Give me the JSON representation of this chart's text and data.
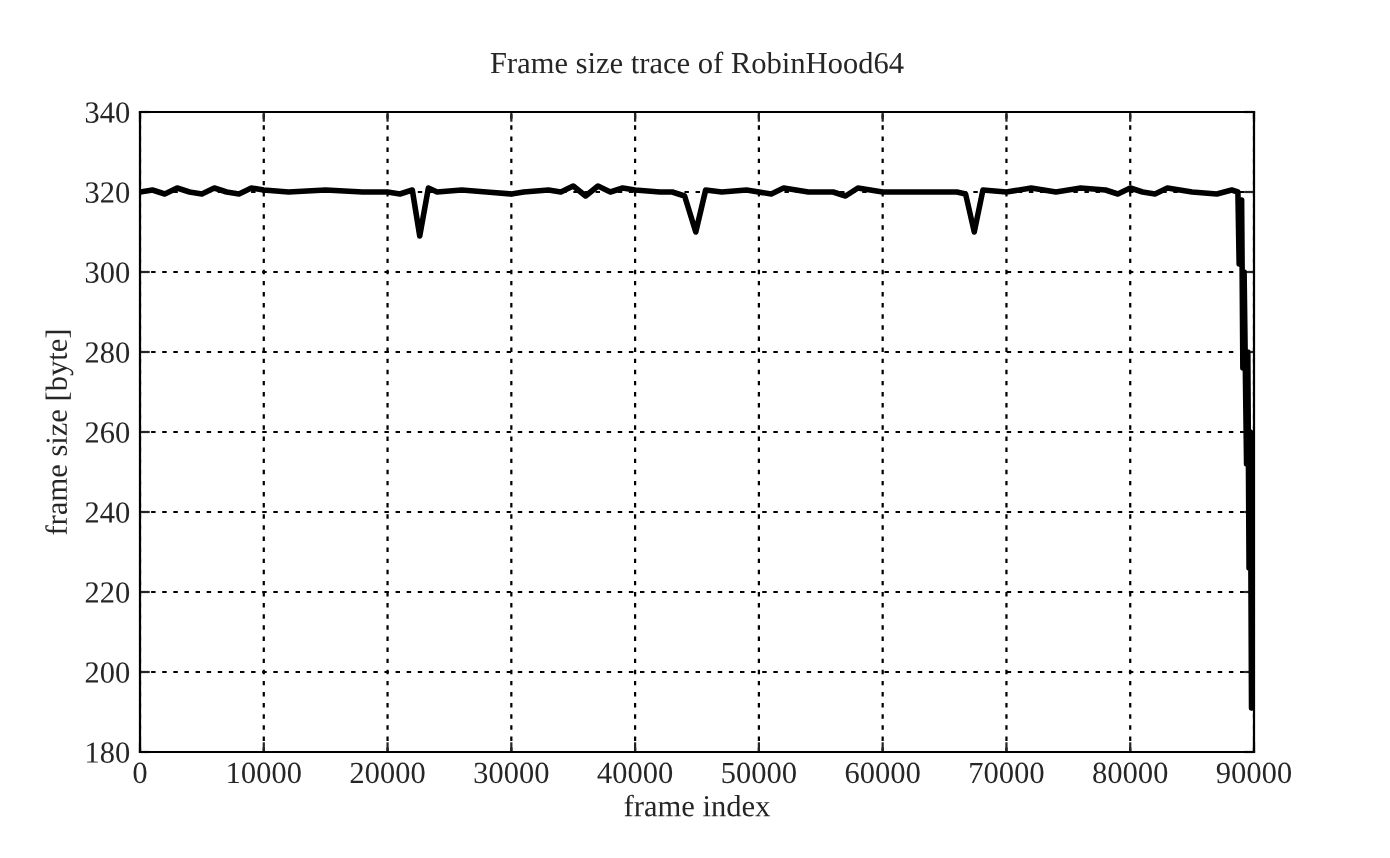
{
  "chart_data": {
    "type": "line",
    "title": "Frame size trace of RobinHood64",
    "xlabel": "frame index",
    "ylabel": "frame size [byte]",
    "xlim": [
      0,
      90000
    ],
    "xticks": [
      0,
      10000,
      20000,
      30000,
      40000,
      50000,
      60000,
      70000,
      80000,
      90000
    ],
    "ylim": [
      180,
      340
    ],
    "yticks": [
      180,
      200,
      220,
      240,
      260,
      280,
      300,
      320,
      340
    ],
    "grid": true,
    "line_style": "solid",
    "marker": "none",
    "series": [
      {
        "color": "#000000",
        "x": [
          0,
          1000,
          2000,
          3000,
          4000,
          5000,
          6000,
          7000,
          8000,
          9000,
          10000,
          12000,
          15000,
          18000,
          20000,
          21000,
          22000,
          22600,
          23300,
          24000,
          26000,
          28000,
          30000,
          31000,
          33000,
          34000,
          35000,
          36000,
          37000,
          38000,
          39000,
          40000,
          42000,
          43000,
          44000,
          44900,
          45700,
          47000,
          49000,
          51000,
          52000,
          54000,
          56000,
          57000,
          58000,
          60000,
          63000,
          66000,
          66700,
          67400,
          68100,
          70000,
          72000,
          74000,
          76000,
          78000,
          79000,
          80000,
          81000,
          82000,
          83000,
          85000,
          87000,
          88200,
          88700,
          88800,
          89000,
          89100,
          89200,
          89400,
          89500,
          89600,
          89700,
          89800
        ],
        "values": [
          320,
          320.5,
          319.5,
          321,
          320,
          319.5,
          321,
          320,
          319.5,
          321,
          320.5,
          320,
          320.5,
          320,
          320,
          319.5,
          320.5,
          309,
          321,
          320,
          320.5,
          320,
          319.5,
          320,
          320.5,
          320,
          321.5,
          319,
          321.5,
          320,
          321,
          320.5,
          320,
          320,
          319,
          310,
          320.5,
          320,
          320.5,
          319.5,
          321,
          320,
          320,
          319,
          321,
          320,
          320,
          320,
          319.5,
          310,
          320.5,
          320,
          321,
          320,
          321,
          320.5,
          319.5,
          321,
          320,
          319.5,
          321,
          320,
          319.5,
          320.5,
          320,
          302,
          318,
          276,
          300,
          252,
          280,
          226,
          260,
          191
        ]
      }
    ]
  }
}
